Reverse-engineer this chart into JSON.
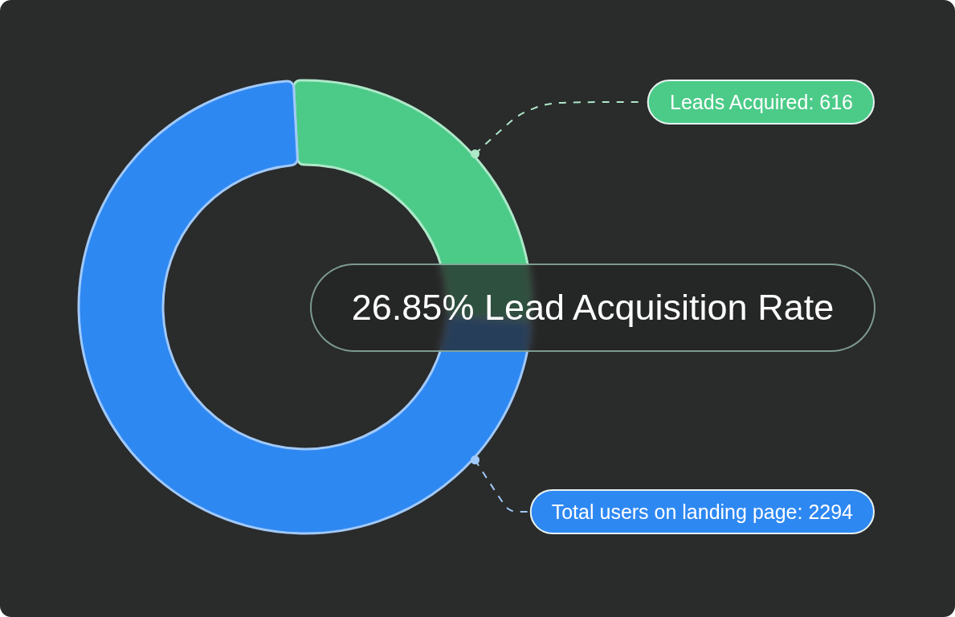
{
  "chart_data": {
    "type": "donut",
    "title": "26.85% Lead Acquisition Rate",
    "categories": [
      "Leads Acquired: 616",
      "Total users on landing page: 2294"
    ],
    "values": [
      26.85,
      73.15
    ],
    "colors": [
      "#4ccb88",
      "#2e88f2"
    ]
  }
}
